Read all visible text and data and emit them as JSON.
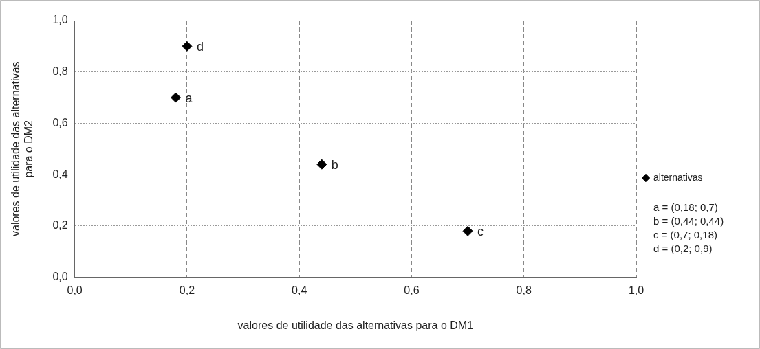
{
  "chart_data": {
    "type": "scatter",
    "xlabel": "valores de utilidade das alternativas para o DM1",
    "ylabel": "valores de utilidade das alternativas\npara o DM2",
    "series": [
      {
        "name": "alternativas",
        "color": "#000000",
        "x": [
          0.18,
          0.44,
          0.7,
          0.2
        ],
        "values": [
          0.7,
          0.44,
          0.18,
          0.9
        ]
      }
    ],
    "xlim": [
      0,
      1
    ],
    "ylim": [
      0,
      1
    ],
    "xticks": [
      {
        "value": 0,
        "label": "0,0"
      },
      {
        "value": 0.2,
        "label": "0,2"
      },
      {
        "value": 0.4,
        "label": "0,4"
      },
      {
        "value": 0.6,
        "label": "0,6"
      },
      {
        "value": 0.8,
        "label": "0,8"
      },
      {
        "value": 1,
        "label": "1,0"
      }
    ],
    "yticks": [
      {
        "value": 0,
        "label": "0,0"
      },
      {
        "value": 0.2,
        "label": "0,2"
      },
      {
        "value": 0.4,
        "label": "0,4"
      },
      {
        "value": 0.6,
        "label": "0,6"
      },
      {
        "value": 0.8,
        "label": "0,8"
      },
      {
        "value": 1,
        "label": "1,0"
      }
    ],
    "grid": true,
    "legend": "right",
    "marker": "diamond",
    "annotations": [
      {
        "text": "a",
        "x": 0.18,
        "y": 0.7
      },
      {
        "text": "b",
        "x": 0.44,
        "y": 0.44
      },
      {
        "text": "c",
        "x": 0.7,
        "y": 0.18
      },
      {
        "text": "d",
        "x": 0.2,
        "y": 0.9
      },
      "a = (0,18; 0,7)",
      "b = (0,44; 0,44)",
      "c = (0,7; 0,18)",
      "d = (0,2; 0,9)"
    ]
  }
}
